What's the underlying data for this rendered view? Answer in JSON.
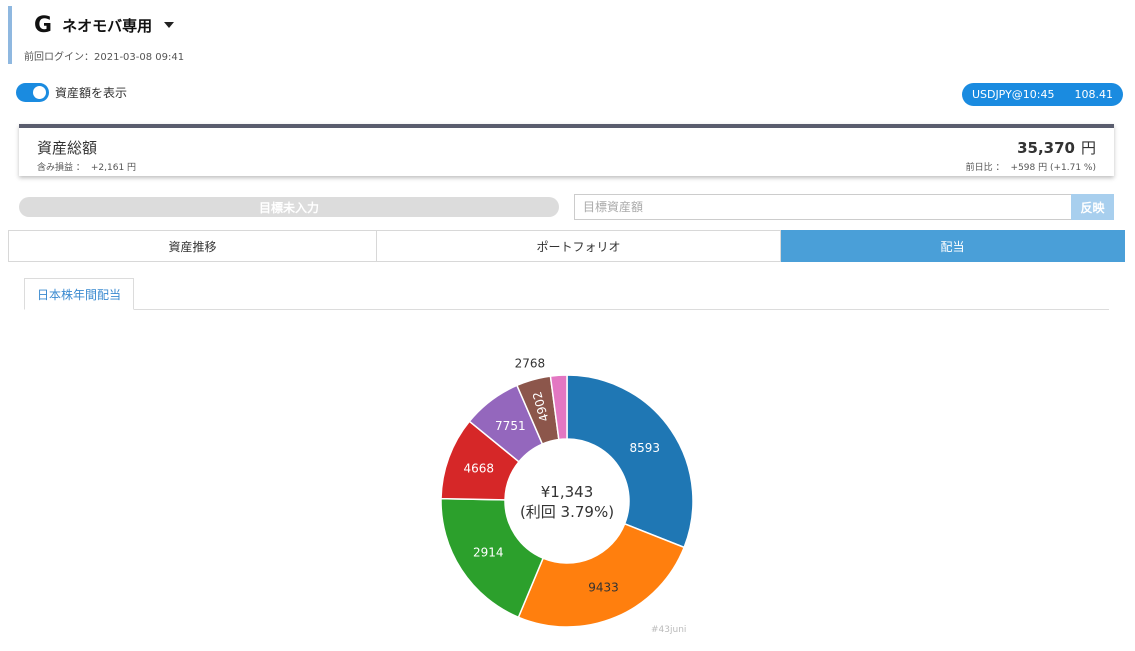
{
  "account": {
    "logo_letter": "G",
    "name": "ネオモバ専用",
    "last_login_label": "前回ログイン：",
    "last_login_value": "2021-03-08 09:41"
  },
  "toggle": {
    "label": "資産額を表示",
    "on": true
  },
  "fx": {
    "label": "USDJPY@10:45",
    "rate": "108.41"
  },
  "summary": {
    "title": "資産総額",
    "pl_label": "含み損益 ：",
    "pl_value": "+2,161 円",
    "total_value": "35,370",
    "total_unit": "円",
    "change_label": "前日比 ：",
    "change_value": "+598 円 (+1.71 %)"
  },
  "goal": {
    "bar_text": "目標未入力",
    "input_placeholder": "目標資産額",
    "apply_label": "反映"
  },
  "tabs": [
    {
      "label": "資産推移",
      "active": false
    },
    {
      "label": "ポートフォリオ",
      "active": false
    },
    {
      "label": "配当",
      "active": true
    }
  ],
  "sub_tab": {
    "label": "日本株年間配当"
  },
  "chart_data": {
    "type": "pie",
    "center_line1": "¥1,343",
    "center_line2": "(利回 3.79%)",
    "slices": [
      {
        "label": "8593",
        "value": 31.0,
        "color": "#1f77b4",
        "label_color": "#ffffff"
      },
      {
        "label": "9433",
        "value": 25.3,
        "color": "#ff7f0e",
        "label_color": "#333333"
      },
      {
        "label": "2914",
        "value": 19.0,
        "color": "#2ca02c",
        "label_color": "#ffffff"
      },
      {
        "label": "4668",
        "value": 10.6,
        "color": "#d62728",
        "label_color": "#ffffff"
      },
      {
        "label": "7751",
        "value": 7.6,
        "color": "#9467bd",
        "label_color": "#ffffff"
      },
      {
        "label": "4902",
        "value": 4.4,
        "color": "#8c564b",
        "label_color": "#ffffff"
      },
      {
        "label": "2768",
        "value": 2.1,
        "color": "#e377c2",
        "label_color": "#333333"
      }
    ]
  },
  "watermark": "#43juni"
}
